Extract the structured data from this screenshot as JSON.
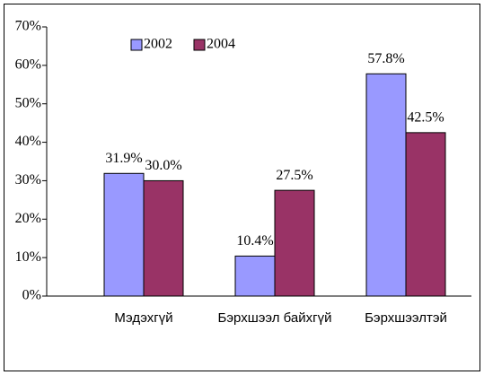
{
  "chart_data": {
    "type": "bar",
    "categories": [
      "Мэдэхгүй",
      "Бэрхшээл байхгүй",
      "Бэрхшээлтэй"
    ],
    "series": [
      {
        "name": "2002",
        "color": "#9999ff",
        "values": [
          31.9,
          10.4,
          57.8
        ],
        "value_labels": [
          "31.9%",
          "10.4%",
          "57.8%"
        ]
      },
      {
        "name": "2004",
        "color": "#993366",
        "values": [
          30.0,
          27.5,
          42.5
        ],
        "value_labels": [
          "30.0%",
          "27.5%",
          "42.5%"
        ]
      }
    ],
    "ylim": [
      0,
      70
    ],
    "yticks": [
      {
        "value": 0,
        "label": "0%"
      },
      {
        "value": 10,
        "label": "10%"
      },
      {
        "value": 20,
        "label": "20%"
      },
      {
        "value": 30,
        "label": "30%"
      },
      {
        "value": 40,
        "label": "40%"
      },
      {
        "value": 50,
        "label": "50%"
      },
      {
        "value": 60,
        "label": "60%"
      },
      {
        "value": 70,
        "label": "70%"
      }
    ],
    "legend": "top-left"
  }
}
